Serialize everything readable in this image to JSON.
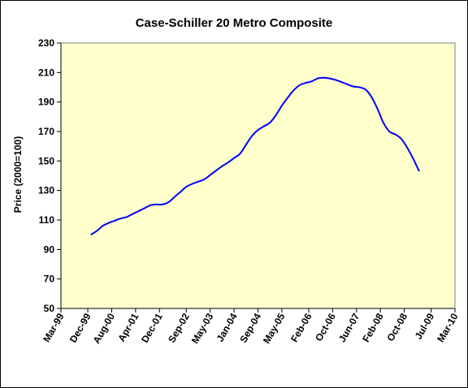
{
  "chart_data": {
    "type": "line",
    "title": "Case-Schiller 20 Metro Composite",
    "ylabel": "Price (2000=100)",
    "xlabel": "",
    "ylim": [
      50,
      230
    ],
    "yticks": [
      50,
      70,
      90,
      110,
      130,
      150,
      170,
      190,
      210,
      230
    ],
    "xticks": [
      "Mar-99",
      "Dec-99",
      "Aug-00",
      "Apr-01",
      "Dec-01",
      "Sep-02",
      "May-03",
      "Jan-04",
      "Sep-04",
      "May-05",
      "Feb-06",
      "Oct-06",
      "Jun-07",
      "Feb-08",
      "Oct-08",
      "Jul-09",
      "Mar-10"
    ],
    "grid": false,
    "legend": "none",
    "colors": {
      "plot_bg": "#ffffcc",
      "line": "#0000ff"
    },
    "series": [
      {
        "x": [
          "Jan-00",
          "Mar-00",
          "May-00",
          "Jul-00",
          "Sep-00",
          "Nov-00",
          "Jan-01",
          "Mar-01",
          "May-01",
          "Jul-01",
          "Sep-01",
          "Nov-01",
          "Jan-02",
          "Mar-02",
          "May-02",
          "Jul-02",
          "Sep-02",
          "Nov-02",
          "Jan-03",
          "Mar-03",
          "May-03",
          "Jul-03",
          "Sep-03",
          "Nov-03",
          "Jan-04",
          "Mar-04",
          "May-04",
          "Jul-04",
          "Sep-04",
          "Nov-04",
          "Jan-05",
          "Mar-05",
          "May-05",
          "Jul-05",
          "Sep-05",
          "Nov-05",
          "Jan-06",
          "Mar-06",
          "May-06",
          "Jul-06",
          "Sep-06",
          "Nov-06",
          "Jan-07",
          "Mar-07",
          "May-07",
          "Jul-07",
          "Sep-07",
          "Nov-07",
          "Jan-08",
          "Mar-08",
          "May-08",
          "Jul-08",
          "Sep-08",
          "Nov-08",
          "Jan-09",
          "Mar-09"
        ],
        "values": [
          100,
          102.5,
          106,
          108,
          109.5,
          111,
          112,
          114,
          116,
          118,
          120,
          120.5,
          120.5,
          122,
          125.5,
          129,
          132.5,
          134.5,
          136,
          137.5,
          140.5,
          143.5,
          146.5,
          149,
          152,
          155,
          161,
          167,
          171,
          173.5,
          176,
          181,
          187.5,
          193,
          198,
          201.5,
          203,
          204,
          206,
          206.5,
          206,
          205,
          203.5,
          202,
          200.5,
          200,
          198.5,
          193.5,
          185.5,
          176,
          170,
          168,
          165,
          159,
          151.5,
          143
        ]
      }
    ]
  }
}
